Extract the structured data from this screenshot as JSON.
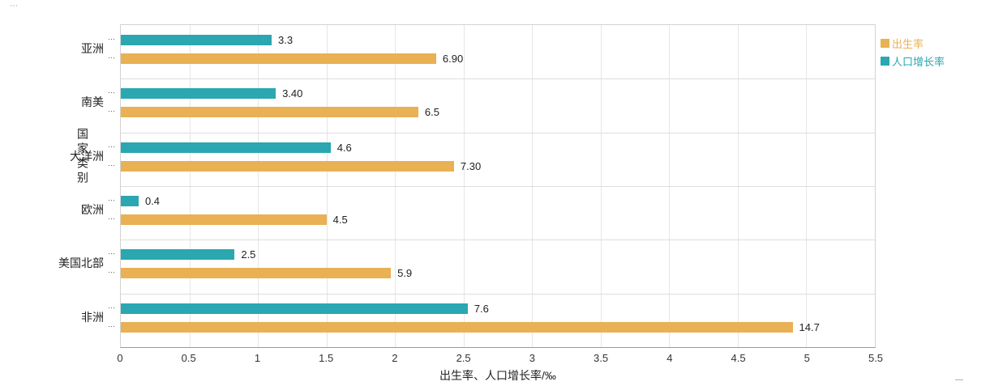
{
  "decorations": {
    "top_left": "⋯",
    "bottom_right": "—",
    "row_marker": "⋯"
  },
  "chart_data": {
    "type": "bar",
    "orientation": "horizontal",
    "title": "",
    "categories": [
      "亚洲",
      "南美",
      "大洋洲",
      "欧洲",
      "美国北部",
      "非洲"
    ],
    "series": [
      {
        "name": "出生率",
        "color": "#e9b154",
        "labels": [
          "6.90",
          "6.5",
          "7.30",
          "4.5",
          "5.9",
          "14.7"
        ],
        "values": [
          6.9,
          6.5,
          7.3,
          4.5,
          5.9,
          14.7
        ],
        "plotted_x": [
          2.3,
          2.17,
          2.43,
          1.5,
          1.97,
          4.9
        ]
      },
      {
        "name": "人口增长率",
        "color": "#2aa7b0",
        "labels": [
          "3.3",
          "3.40",
          "4.6",
          "0.4",
          "2.5",
          "7.6"
        ],
        "values": [
          3.3,
          3.4,
          4.6,
          0.4,
          2.5,
          7.6
        ],
        "plotted_x": [
          1.1,
          1.13,
          1.53,
          0.13,
          0.83,
          2.53
        ]
      }
    ],
    "xlabel": "出生率、人口增长率/‰",
    "ylabel": "国家类别",
    "xlim": [
      0,
      5.5
    ],
    "xticks": [
      "0",
      "0.5",
      "1",
      "1.5",
      "2",
      "2.5",
      "3",
      "3.5",
      "4",
      "4.5",
      "5",
      "5.5"
    ],
    "grid": true,
    "legend_position": "right"
  }
}
